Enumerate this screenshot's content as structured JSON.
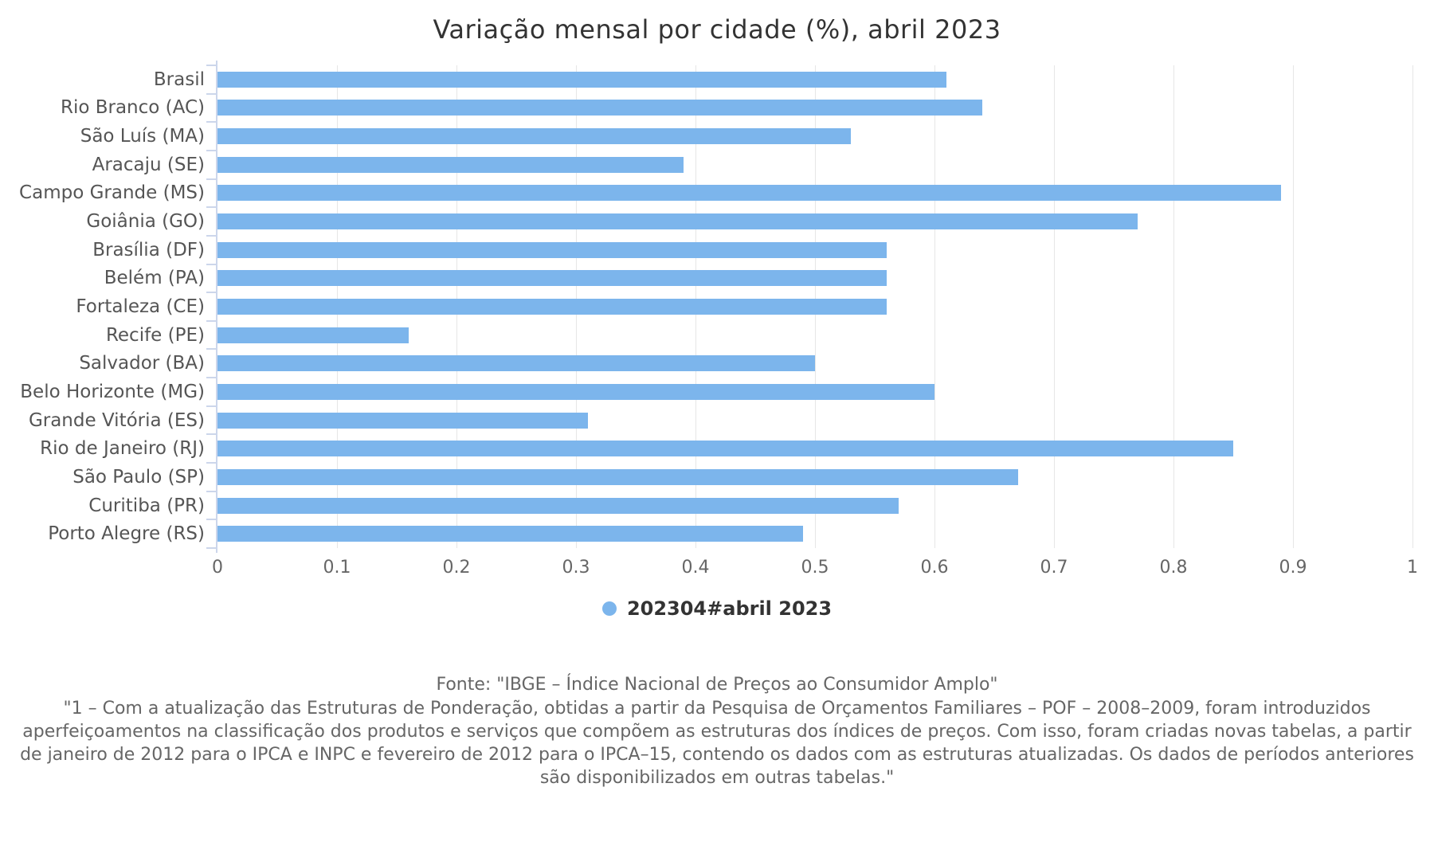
{
  "title": "Variação mensal por cidade (%), abril 2023",
  "chart_data": {
    "type": "bar",
    "orientation": "horizontal",
    "title": "Variação mensal por cidade (%), abril 2023",
    "categories": [
      "Brasil",
      "Rio Branco (AC)",
      "São Luís (MA)",
      "Aracaju (SE)",
      "Campo Grande (MS)",
      "Goiânia (GO)",
      "Brasília (DF)",
      "Belém (PA)",
      "Fortaleza (CE)",
      "Recife (PE)",
      "Salvador (BA)",
      "Belo Horizonte (MG)",
      "Grande Vitória (ES)",
      "Rio de Janeiro (RJ)",
      "São Paulo (SP)",
      "Curitiba (PR)",
      "Porto Alegre (RS)"
    ],
    "series": [
      {
        "name": "202304#abril 2023",
        "values": [
          0.61,
          0.64,
          0.53,
          0.39,
          0.89,
          0.77,
          0.56,
          0.56,
          0.56,
          0.16,
          0.5,
          0.6,
          0.31,
          0.85,
          0.67,
          0.57,
          0.49
        ]
      }
    ],
    "xlabel": "",
    "ylabel": "",
    "xlim": [
      0,
      1
    ],
    "x_ticks": [
      0,
      0.1,
      0.2,
      0.3,
      0.4,
      0.5,
      0.6,
      0.7,
      0.8,
      0.9,
      1
    ],
    "x_tick_labels": [
      "0",
      "0.1",
      "0.2",
      "0.3",
      "0.4",
      "0.5",
      "0.6",
      "0.7",
      "0.8",
      "0.9",
      "1"
    ],
    "grid": true,
    "legend_position": "bottom"
  },
  "legend": {
    "label": "202304#abril 2023",
    "marker_color": "#7cb5ec"
  },
  "footer": {
    "source_line": "Fonte: \"IBGE – Índice Nacional de Preços ao Consumidor Amplo\"",
    "note": "\"1 – Com a atualização das Estruturas de Ponderação, obtidas a partir da Pesquisa de Orçamentos Familiares – POF – 2008–2009, foram introduzidos aperfeiçoamentos na classificação dos produtos e serviços que compõem as estruturas dos índices de preços. Com isso, foram criadas novas tabelas, a partir de janeiro de 2012 para o IPCA e INPC e fevereiro de 2012 para o IPCA–15, contendo os dados com as estruturas atualizadas. Os dados de períodos anteriores são disponibilizados em outras tabelas.\""
  },
  "colors": {
    "bar": "#7cb5ec",
    "axis_line": "#ccd6eb",
    "gridline": "#e6e6e6",
    "title_text": "#333333",
    "category_label": "#555555",
    "tick_label": "#666666",
    "footer_text": "#666666"
  }
}
